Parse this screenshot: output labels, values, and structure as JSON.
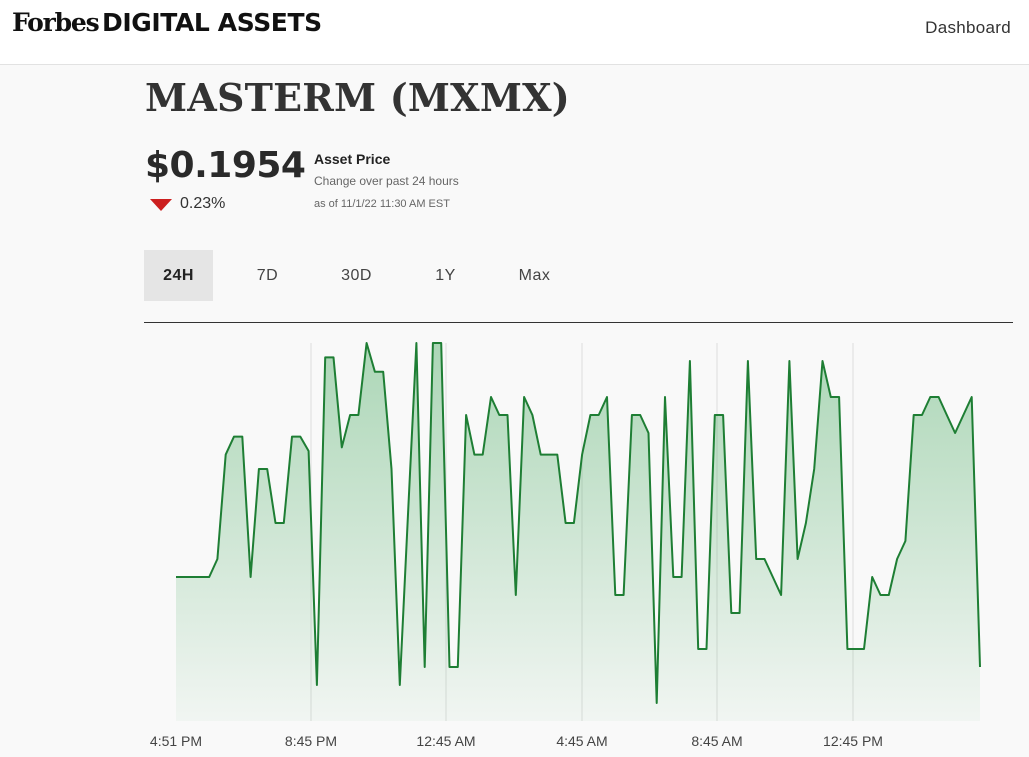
{
  "header": {
    "logo_forbes": "Forbes",
    "logo_digital": "DIGITAL ASSETS",
    "nav_dashboard": "Dashboard"
  },
  "asset": {
    "title": "MASTERM (MXMX)",
    "price": "$0.1954",
    "change": "0.23%",
    "direction": "down",
    "price_label": "Asset Price",
    "change_caption": "Change over past 24 hours",
    "as_of": "as of 11/1/22 11:30 AM EST"
  },
  "tabs": [
    {
      "label": "24H",
      "active": true
    },
    {
      "label": "7D",
      "active": false
    },
    {
      "label": "30D",
      "active": false
    },
    {
      "label": "1Y",
      "active": false
    },
    {
      "label": "Max",
      "active": false
    }
  ],
  "colors": {
    "line": "#1e7e34",
    "fill": "#2e9e4a",
    "down_arrow": "#cc1f1f",
    "active_tab_bg": "#e5e5e5"
  },
  "chart_data": {
    "type": "area",
    "title": "",
    "xlabel": "",
    "ylabel": "",
    "x_tick_labels": [
      "4:51 PM",
      "8:45 PM",
      "12:45 AM",
      "4:45 AM",
      "8:45 AM",
      "12:45 PM"
    ],
    "grid": "vertical",
    "legend": "none",
    "series": [
      {
        "values": [
          0.35,
          0.35,
          0.35,
          0.35,
          0.35,
          0.4,
          0.69,
          0.74,
          0.74,
          0.35,
          0.65,
          0.65,
          0.5,
          0.5,
          0.74,
          0.74,
          0.7,
          0.05,
          0.96,
          0.96,
          0.71,
          0.8,
          0.8,
          1.0,
          0.92,
          0.92,
          0.65,
          0.05,
          0.53,
          1.0,
          0.1,
          1.0,
          1.0,
          0.1,
          0.1,
          0.8,
          0.69,
          0.69,
          0.85,
          0.8,
          0.8,
          0.3,
          0.85,
          0.8,
          0.69,
          0.69,
          0.69,
          0.5,
          0.5,
          0.69,
          0.8,
          0.8,
          0.85,
          0.3,
          0.3,
          0.8,
          0.8,
          0.75,
          0.0,
          0.85,
          0.35,
          0.35,
          0.95,
          0.15,
          0.15,
          0.8,
          0.8,
          0.25,
          0.25,
          0.95,
          0.4,
          0.4,
          0.35,
          0.3,
          0.95,
          0.4,
          0.5,
          0.65,
          0.95,
          0.85,
          0.85,
          0.15,
          0.15,
          0.15,
          0.35,
          0.3,
          0.3,
          0.4,
          0.45,
          0.8,
          0.8,
          0.85,
          0.85,
          0.8,
          0.75,
          0.8,
          0.85,
          0.1
        ]
      }
    ]
  }
}
